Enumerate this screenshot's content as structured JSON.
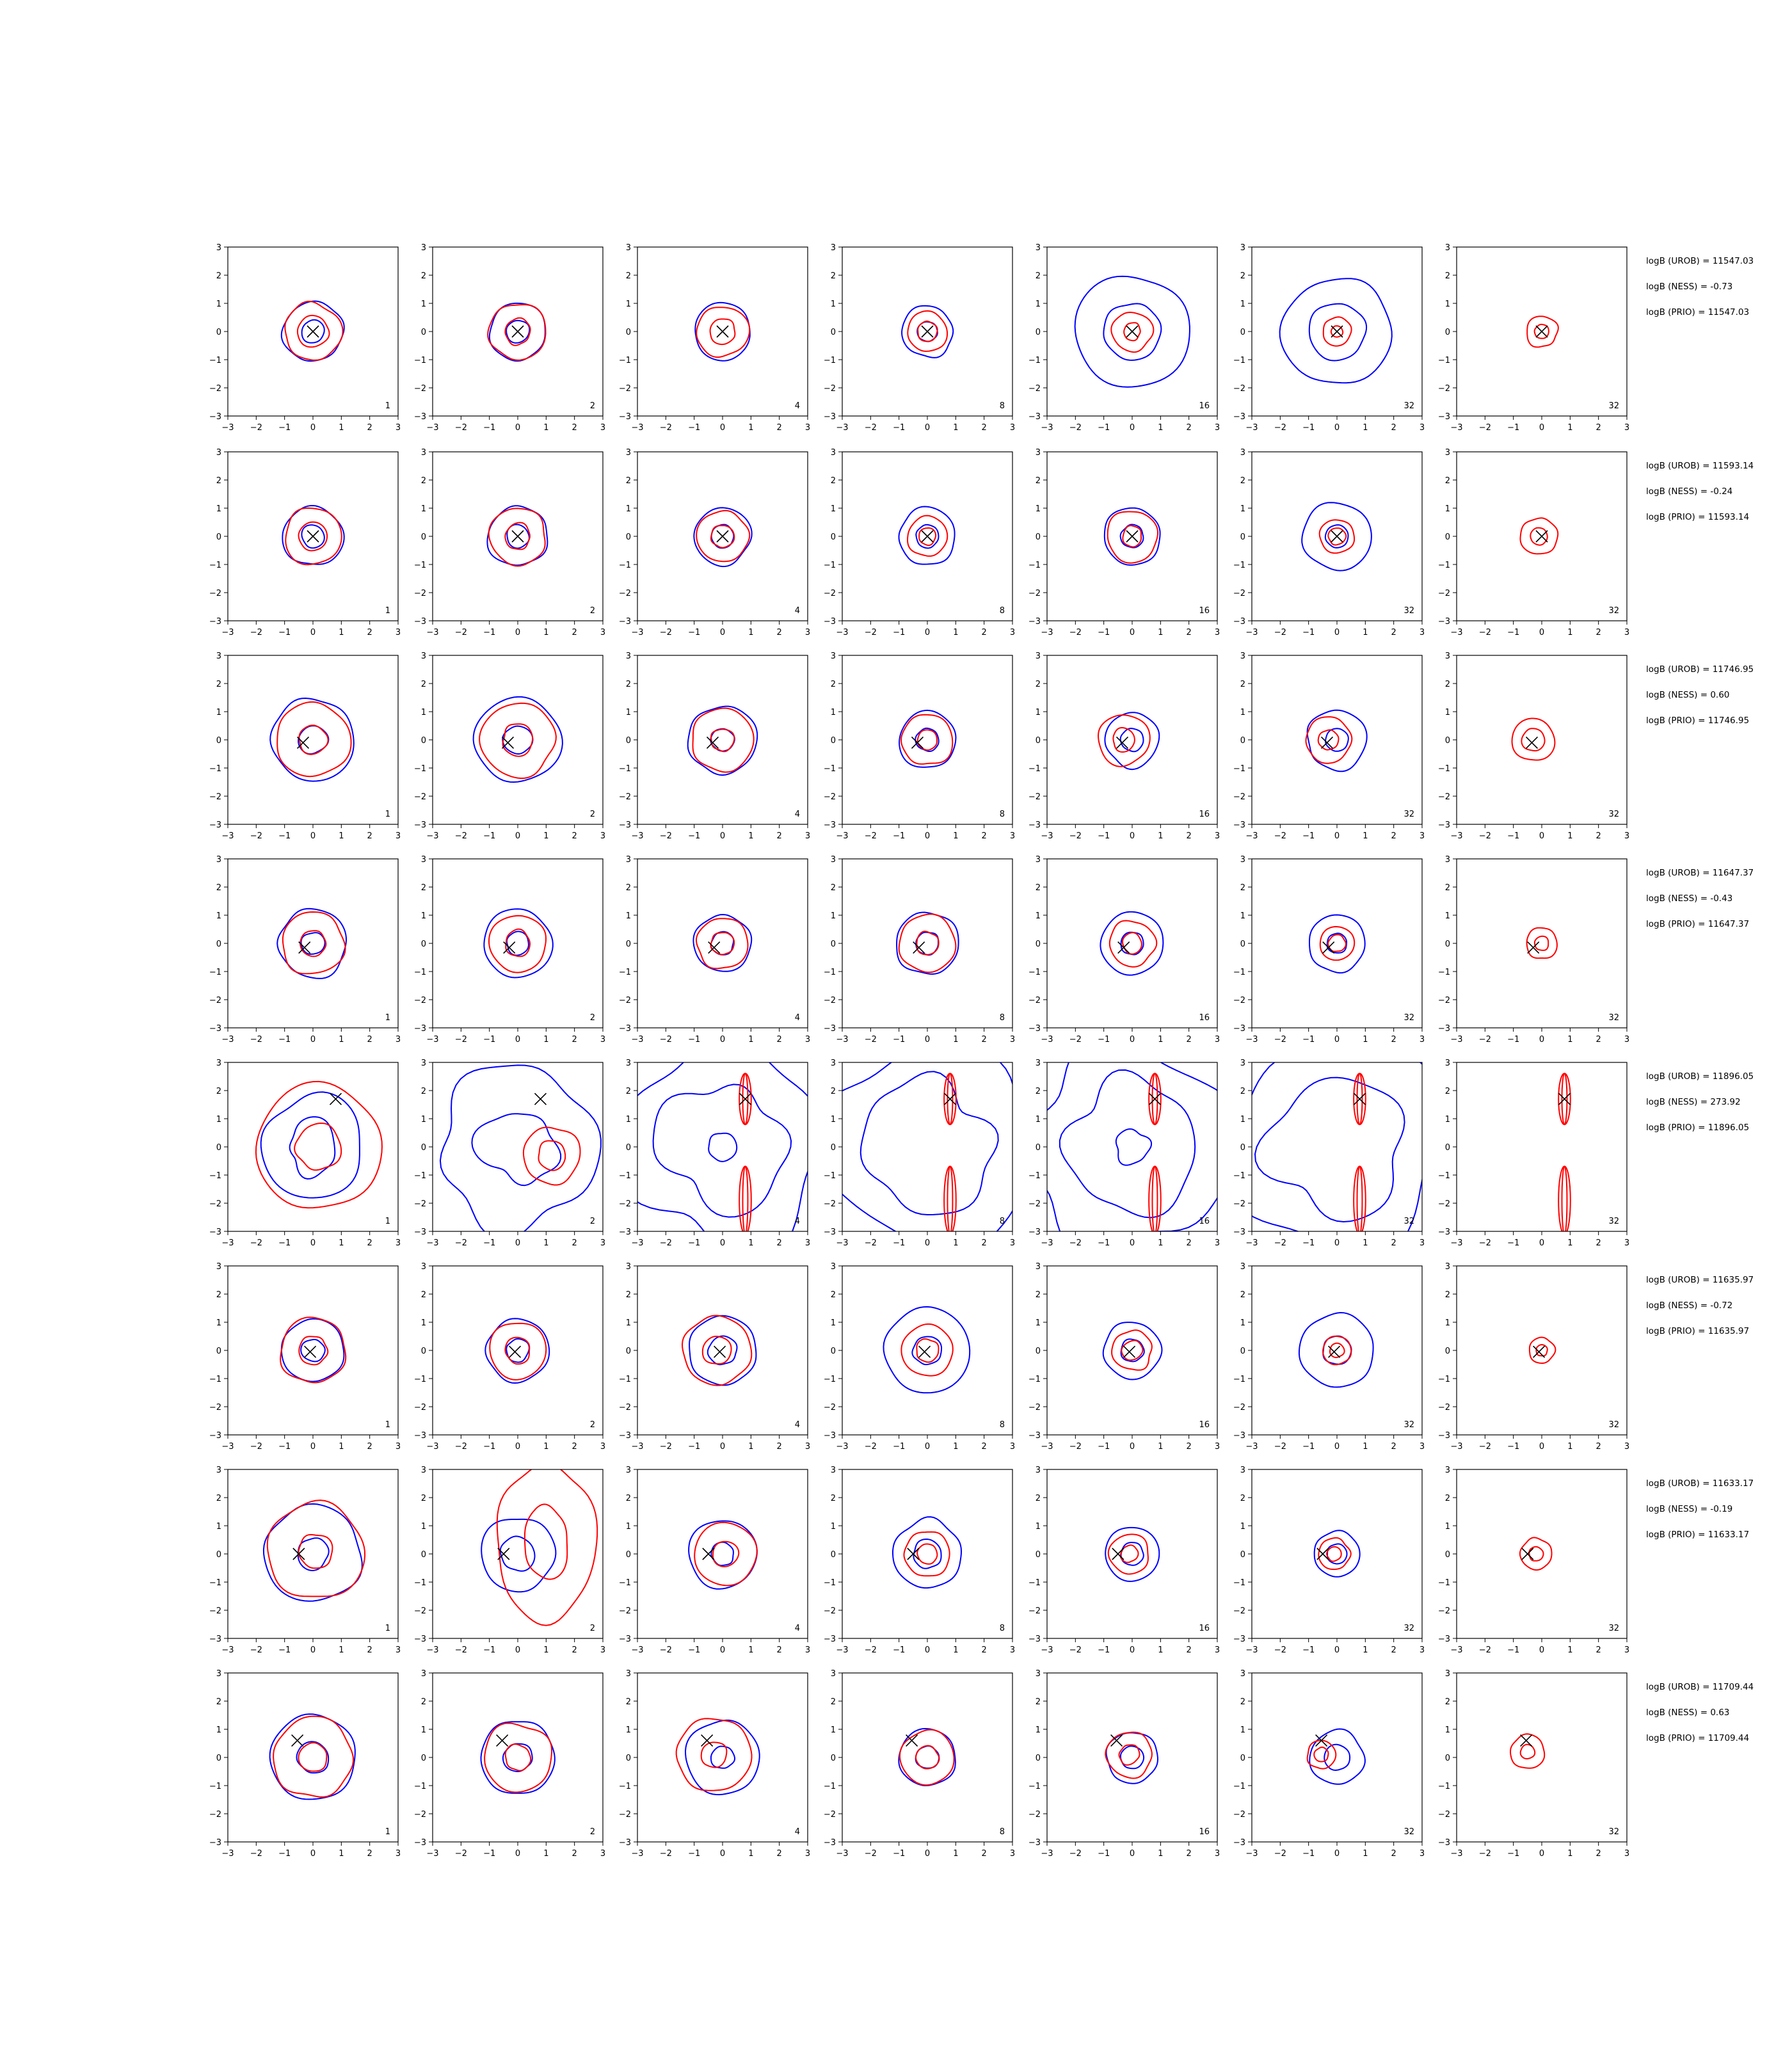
{
  "chart_data": {
    "type": "contour-grid",
    "xlim": [
      -3,
      3
    ],
    "ylim": [
      -3,
      3
    ],
    "xticks": [
      -3,
      -2,
      -1,
      0,
      1,
      2,
      3
    ],
    "yticks": [
      -3,
      -2,
      -1,
      0,
      1,
      2,
      3
    ],
    "colors": {
      "blue": "#0000ff",
      "red": "#ff0000",
      "marker": "#000000",
      "frame": "#000000"
    },
    "column_labels": [
      "1",
      "2",
      "4",
      "8",
      "16",
      "32",
      "32"
    ],
    "rows": [
      {
        "marker": [
          0,
          0
        ],
        "annotations": [
          "logB (UROB) = 11547.03",
          "logB (NESS) = -0.73",
          "logB (PRIO) = 11547.03"
        ],
        "panels": [
          {
            "blue": [
              1.05,
              0.4
            ],
            "red": [
              1.0,
              0.55
            ],
            "red_offset": [
              0.0,
              0.0
            ]
          },
          {
            "blue": [
              1.0,
              0.4
            ],
            "red": [
              1.0,
              0.45
            ],
            "red_offset": [
              0.0,
              0.0
            ]
          },
          {
            "blue": [
              1.0
            ],
            "red": [
              0.9,
              0.45
            ],
            "red_offset": [
              0.0,
              0.0
            ]
          },
          {
            "blue": [
              0.9,
              0.35
            ],
            "red": [
              0.7,
              0.35
            ],
            "red_offset": [
              0.0,
              0.0
            ]
          },
          {
            "blue": [
              2.0,
              1.0
            ],
            "red": [
              0.7,
              0.3
            ],
            "red_offset": [
              0.0,
              0.0
            ]
          },
          {
            "blue": [
              1.9,
              1.0
            ],
            "red": [
              0.5,
              0.2
            ],
            "red_offset": [
              0.0,
              0.0
            ]
          },
          {
            "blue": [],
            "red": [
              0.55,
              0.25
            ],
            "red_offset": [
              0.0,
              0.0
            ]
          }
        ]
      },
      {
        "marker": [
          0,
          0
        ],
        "annotations": [
          "logB (UROB) = 11593.14",
          "logB (NESS) = -0.24",
          "logB (PRIO) = 11593.14"
        ],
        "panels": [
          {
            "blue": [
              1.05,
              0.4
            ],
            "red": [
              1.0,
              0.5
            ],
            "red_offset": [
              0.0,
              0.0
            ]
          },
          {
            "blue": [
              1.05,
              0.4
            ],
            "red": [
              1.0,
              0.45
            ],
            "red_offset": [
              0.0,
              0.0
            ]
          },
          {
            "blue": [
              1.0,
              0.4
            ],
            "red": [
              0.9,
              0.4
            ],
            "red_offset": [
              0.0,
              0.0
            ]
          },
          {
            "blue": [
              1.0,
              0.4
            ],
            "red": [
              0.7,
              0.3
            ],
            "red_offset": [
              0.0,
              0.0
            ]
          },
          {
            "blue": [
              1.0,
              0.4
            ],
            "red": [
              0.9,
              0.35
            ],
            "red_offset": [
              0.0,
              0.0
            ]
          },
          {
            "blue": [
              1.2,
              0.4
            ],
            "red": [
              0.6,
              0.3
            ],
            "red_offset": [
              0.0,
              0.0
            ]
          },
          {
            "blue": [],
            "red": [
              0.65,
              0.3
            ],
            "red_offset": [
              -0.1,
              0.0
            ]
          }
        ]
      },
      {
        "marker": [
          -0.35,
          -0.1
        ],
        "annotations": [
          "logB (UROB) = 11746.95",
          "logB (NESS) = 0.60",
          "logB (PRIO) = 11746.95"
        ],
        "panels": [
          {
            "blue": [
              1.45,
              0.5
            ],
            "red": [
              1.3,
              0.5
            ],
            "red_offset": [
              0.0,
              0.0
            ]
          },
          {
            "blue": [
              1.5,
              0.5
            ],
            "red": [
              1.3,
              0.55
            ],
            "red_offset": [
              0.0,
              0.0
            ]
          },
          {
            "blue": [
              1.2,
              0.4
            ],
            "red": [
              1.1,
              0.4
            ],
            "red_offset": [
              0.0,
              0.0
            ]
          },
          {
            "blue": [
              1.0,
              0.4
            ],
            "red": [
              0.9,
              0.35
            ],
            "red_offset": [
              0.0,
              0.0
            ]
          },
          {
            "blue": [
              0.95,
              0.4
            ],
            "red": [
              0.9,
              0.4
            ],
            "red_offset": [
              -0.3,
              0.0
            ]
          },
          {
            "blue": [
              1.05,
              0.4
            ],
            "red": [
              0.8,
              0.35
            ],
            "red_offset": [
              -0.3,
              0.0
            ]
          },
          {
            "blue": [],
            "red": [
              0.75,
              0.4
            ],
            "red_offset": [
              -0.3,
              0.0
            ]
          }
        ]
      },
      {
        "marker": [
          -0.3,
          -0.15
        ],
        "annotations": [
          "logB (UROB) = 11647.37",
          "logB (NESS) = -0.43",
          "logB (PRIO) = 11647.37"
        ],
        "panels": [
          {
            "blue": [
              1.2,
              0.4
            ],
            "red": [
              1.1,
              0.45
            ],
            "red_offset": [
              0.0,
              0.0
            ]
          },
          {
            "blue": [
              1.2,
              0.4
            ],
            "red": [
              1.0,
              0.45
            ],
            "red_offset": [
              0.0,
              0.0
            ]
          },
          {
            "blue": [
              1.0,
              0.4
            ],
            "red": [
              0.9,
              0.4
            ],
            "red_offset": [
              0.0,
              0.0
            ]
          },
          {
            "blue": [
              1.1,
              0.4
            ],
            "red": [
              1.0,
              0.4
            ],
            "red_offset": [
              0.0,
              0.0
            ]
          },
          {
            "blue": [
              1.1,
              0.4
            ],
            "red": [
              0.8,
              0.35
            ],
            "red_offset": [
              0.0,
              0.0
            ]
          },
          {
            "blue": [
              1.0,
              0.35
            ],
            "red": [
              0.6,
              0.3
            ],
            "red_offset": [
              0.0,
              0.0
            ]
          },
          {
            "blue": [],
            "red": [
              0.55,
              0.25
            ],
            "red_offset": [
              0.0,
              0.0
            ]
          }
        ]
      },
      {
        "marker": [
          0.8,
          1.7
        ],
        "annotations": [
          "logB (UROB) = 11896.05",
          "logB (NESS) = 273.92",
          "logB (PRIO) = 11896.05"
        ],
        "panels": [
          {
            "blue": [
              1.8,
              0.9
            ],
            "red": [
              2.2,
              0.8
            ],
            "red_offset": [
              0.2,
              0.0
            ]
          },
          {
            "blue": [
              2.8,
              1.3
            ],
            "red": [
              1.0,
              0.5
            ],
            "red_offset": [
              1.2,
              -0.3
            ]
          },
          {
            "blue": [
              3.5,
              2.2,
              0.5
            ],
            "red": [
              0.3,
              0.15
            ],
            "red_offset": [
              0.8,
              0.0
            ],
            "red_streaks": true
          },
          {
            "blue": [
              3.6,
              2.3
            ],
            "red": [
              0.3,
              0.15
            ],
            "red_offset": [
              0.8,
              0.0
            ],
            "red_streaks": true
          },
          {
            "blue": [
              3.6,
              2.3,
              0.6
            ],
            "red": [
              0.3,
              0.15
            ],
            "red_offset": [
              0.8,
              0.0
            ],
            "red_streaks": true
          },
          {
            "blue": [
              3.7,
              2.4
            ],
            "red": [
              0.3,
              0.15
            ],
            "red_offset": [
              0.8,
              0.0
            ],
            "red_streaks": true
          },
          {
            "blue": [],
            "red": [
              0.3,
              0.15
            ],
            "red_offset": [
              0.8,
              0.0
            ],
            "red_streaks": true
          }
        ]
      },
      {
        "marker": [
          -0.1,
          -0.05
        ],
        "annotations": [
          "logB (UROB) = 11635.97",
          "logB (NESS) = -0.72",
          "logB (PRIO) = 11635.97"
        ],
        "panels": [
          {
            "blue": [
              1.1,
              0.4
            ],
            "red": [
              1.15,
              0.5
            ],
            "red_offset": [
              0.0,
              0.0
            ]
          },
          {
            "blue": [
              1.1,
              0.4
            ],
            "red": [
              1.0,
              0.45
            ],
            "red_offset": [
              0.0,
              0.0
            ]
          },
          {
            "blue": [
              1.2,
              0.5
            ],
            "red": [
              1.2,
              0.5
            ],
            "red_offset": [
              -0.2,
              0.0
            ]
          },
          {
            "blue": [
              1.5,
              0.5
            ],
            "red": [
              0.9,
              0.4
            ],
            "red_offset": [
              0.0,
              0.0
            ]
          },
          {
            "blue": [
              1.0,
              0.4
            ],
            "red": [
              0.7,
              0.35
            ],
            "red_offset": [
              0.0,
              0.0
            ]
          },
          {
            "blue": [
              1.3,
              0.5
            ],
            "red": [
              0.5,
              0.25
            ],
            "red_offset": [
              0.0,
              0.0
            ]
          },
          {
            "blue": [],
            "red": [
              0.45,
              0.2
            ],
            "red_offset": [
              0.0,
              0.0
            ]
          }
        ]
      },
      {
        "marker": [
          -0.5,
          0.0
        ],
        "annotations": [
          "logB (UROB) = 11633.17",
          "logB (NESS) = -0.19",
          "logB (PRIO) = 11633.17"
        ],
        "panels": [
          {
            "blue": [
              1.7,
              0.55
            ],
            "red": [
              1.7,
              0.6
            ],
            "red_offset": [
              0.1,
              0.1
            ]
          },
          {
            "blue": [
              1.3,
              0.6
            ],
            "red": [
              2.2,
              1.0
            ],
            "red_offset": [
              1.0,
              0.4
            ],
            "red_elongate": 1.6
          },
          {
            "blue": [
              1.2,
              0.4
            ],
            "red": [
              1.1,
              0.45
            ],
            "red_offset": [
              0.1,
              0.0
            ]
          },
          {
            "blue": [
              1.2,
              0.5
            ],
            "red": [
              0.8,
              0.35
            ],
            "red_offset": [
              0.0,
              0.0
            ]
          },
          {
            "blue": [
              0.95,
              0.4
            ],
            "red": [
              0.7,
              0.3
            ],
            "red_offset": [
              -0.1,
              0.0
            ]
          },
          {
            "blue": [
              0.8,
              0.35
            ],
            "red": [
              0.55,
              0.25
            ],
            "red_offset": [
              -0.1,
              0.0
            ]
          },
          {
            "blue": [],
            "red": [
              0.55,
              0.25
            ],
            "red_offset": [
              -0.2,
              0.0
            ]
          }
        ]
      },
      {
        "marker": [
          -0.55,
          0.6
        ],
        "annotations": [
          "logB (UROB) = 11709.44",
          "logB (NESS) = 0.63",
          "logB (PRIO) = 11709.44"
        ],
        "panels": [
          {
            "blue": [
              1.5,
              0.55
            ],
            "red": [
              1.4,
              0.5
            ],
            "red_offset": [
              0.0,
              0.0
            ]
          },
          {
            "blue": [
              1.3,
              0.5
            ],
            "red": [
              1.2,
              0.45
            ],
            "red_offset": [
              0.0,
              0.0
            ]
          },
          {
            "blue": [
              1.3,
              0.4
            ],
            "red": [
              1.3,
              0.45
            ],
            "red_offset": [
              -0.3,
              0.1
            ]
          },
          {
            "blue": [
              1.0,
              0.4
            ],
            "red": [
              0.95,
              0.4
            ],
            "red_offset": [
              0.0,
              0.0
            ]
          },
          {
            "blue": [
              0.9,
              0.4
            ],
            "red": [
              0.8,
              0.35
            ],
            "red_offset": [
              -0.1,
              0.1
            ]
          },
          {
            "blue": [
              0.95,
              0.45
            ],
            "red": [
              0.5,
              0.25
            ],
            "red_offset": [
              -0.55,
              0.1
            ]
          },
          {
            "blue": [],
            "red": [
              0.6,
              0.25
            ],
            "red_offset": [
              -0.5,
              0.2
            ]
          }
        ]
      }
    ]
  }
}
